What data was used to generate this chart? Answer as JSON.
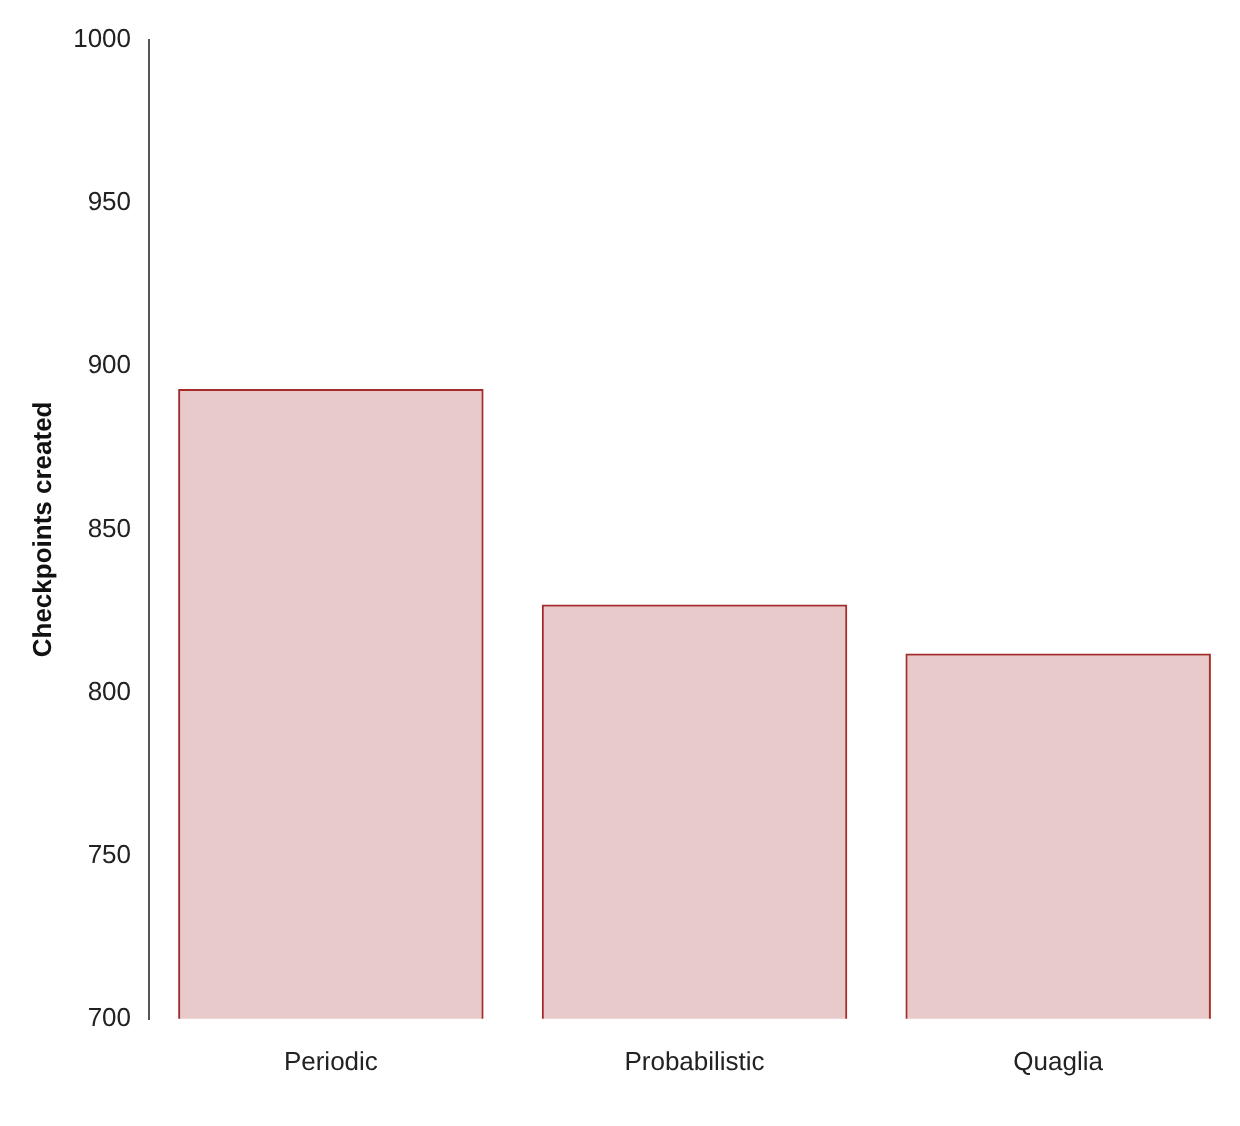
{
  "chart_data": {
    "type": "bar",
    "ylabel": "Checkpoints created",
    "categories": [
      "Periodic",
      "Probabilistic",
      "Quaglia"
    ],
    "values": [
      893,
      827,
      812
    ],
    "color": "#a52a2a",
    "ylim": [
      700,
      1000
    ],
    "yticks": [
      700,
      750,
      800,
      850,
      900,
      950,
      1000
    ],
    "grid": false,
    "legend": false
  }
}
